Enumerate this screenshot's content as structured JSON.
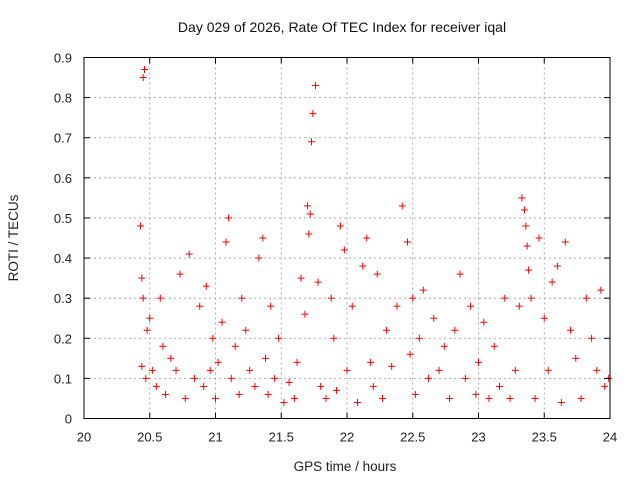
{
  "chart_data": {
    "type": "scatter",
    "title": "Day 029 of 2026, Rate Of TEC Index for receiver iqal",
    "xlabel": "GPS time / hours",
    "ylabel": "ROTI / TECUs",
    "xlim": [
      20,
      24
    ],
    "ylim": [
      0,
      0.9
    ],
    "xticks": [
      "20",
      "20.5",
      "21",
      "21.5",
      "22",
      "22.5",
      "23",
      "23.5",
      "24"
    ],
    "yticks": [
      "0",
      "0.1",
      "0.2",
      "0.3",
      "0.4",
      "0.5",
      "0.6",
      "0.7",
      "0.8",
      "0.9"
    ],
    "grid": true,
    "marker": "plus",
    "color": "#ff0000",
    "series": [
      {
        "x": [
          20.43,
          20.44,
          20.45,
          20.46,
          20.44,
          20.45,
          20.47,
          20.48,
          20.5,
          20.52,
          20.55,
          20.58,
          20.6,
          20.62,
          20.66,
          20.7,
          20.73,
          20.77,
          20.8,
          20.84,
          20.88,
          20.91,
          20.93,
          20.96,
          20.98,
          21.0,
          21.02,
          21.05,
          21.08,
          21.1,
          21.12,
          21.15,
          21.18,
          21.2,
          21.23,
          21.26,
          21.3,
          21.33,
          21.36,
          21.38,
          21.4,
          21.42,
          21.45,
          21.48,
          21.52,
          21.56,
          21.6,
          21.62,
          21.65,
          21.68,
          21.7,
          21.71,
          21.72,
          21.73,
          21.74,
          21.76,
          21.78,
          21.8,
          21.84,
          21.88,
          21.9,
          21.92,
          21.95,
          21.98,
          22.0,
          22.04,
          22.08,
          22.12,
          22.15,
          22.18,
          22.2,
          22.23,
          22.27,
          22.3,
          22.34,
          22.38,
          22.42,
          22.46,
          22.48,
          22.5,
          22.52,
          22.55,
          22.58,
          22.62,
          22.66,
          22.7,
          22.74,
          22.78,
          22.82,
          22.86,
          22.9,
          22.94,
          22.98,
          23.0,
          23.04,
          23.08,
          23.12,
          23.16,
          23.2,
          23.24,
          23.28,
          23.31,
          23.33,
          23.35,
          23.36,
          23.37,
          23.38,
          23.4,
          23.43,
          23.46,
          23.5,
          23.53,
          23.56,
          23.6,
          23.63,
          23.66,
          23.7,
          23.74,
          23.78,
          23.82,
          23.86,
          23.9,
          23.93,
          23.96,
          23.99
        ],
        "y": [
          0.48,
          0.35,
          0.85,
          0.87,
          0.13,
          0.3,
          0.1,
          0.22,
          0.25,
          0.12,
          0.08,
          0.3,
          0.18,
          0.06,
          0.15,
          0.12,
          0.36,
          0.05,
          0.41,
          0.1,
          0.28,
          0.08,
          0.33,
          0.12,
          0.2,
          0.05,
          0.14,
          0.24,
          0.44,
          0.5,
          0.1,
          0.18,
          0.06,
          0.3,
          0.22,
          0.12,
          0.08,
          0.4,
          0.45,
          0.15,
          0.06,
          0.28,
          0.1,
          0.2,
          0.04,
          0.09,
          0.05,
          0.14,
          0.35,
          0.26,
          0.53,
          0.46,
          0.51,
          0.69,
          0.76,
          0.83,
          0.34,
          0.08,
          0.05,
          0.3,
          0.2,
          0.07,
          0.48,
          0.42,
          0.12,
          0.28,
          0.04,
          0.38,
          0.45,
          0.14,
          0.08,
          0.36,
          0.05,
          0.22,
          0.13,
          0.28,
          0.53,
          0.44,
          0.16,
          0.3,
          0.06,
          0.2,
          0.32,
          0.1,
          0.25,
          0.12,
          0.18,
          0.05,
          0.22,
          0.36,
          0.1,
          0.28,
          0.06,
          0.14,
          0.24,
          0.05,
          0.18,
          0.08,
          0.3,
          0.05,
          0.12,
          0.28,
          0.55,
          0.52,
          0.48,
          0.43,
          0.37,
          0.3,
          0.05,
          0.45,
          0.25,
          0.12,
          0.34,
          0.38,
          0.04,
          0.44,
          0.22,
          0.15,
          0.05,
          0.3,
          0.2,
          0.12,
          0.32,
          0.08,
          0.1
        ]
      }
    ]
  }
}
